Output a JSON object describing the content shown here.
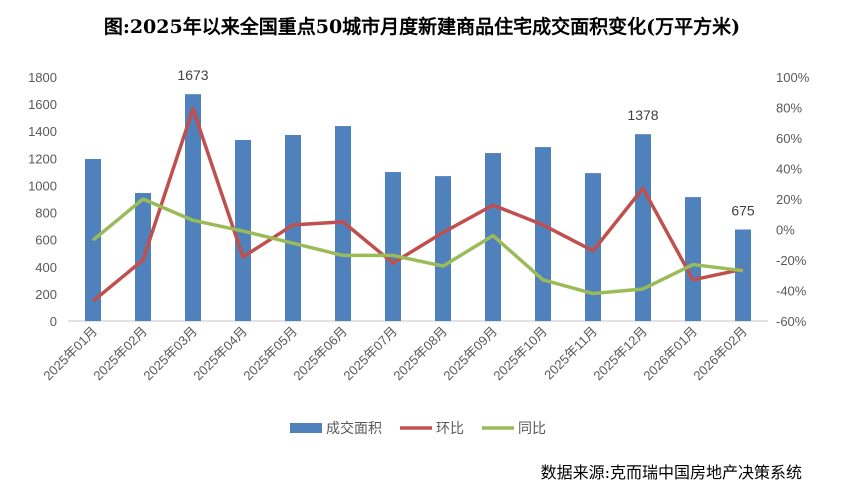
{
  "chart_data": {
    "type": "bar",
    "title": "图:2025年以来全国重点50城市月度新建商品住宅成交面积变化(万平方米)",
    "source": "数据来源:克而瑞中国房地产决策系统",
    "categories": [
      "2025年01月",
      "2025年02月",
      "2025年03月",
      "2025年04月",
      "2025年05月",
      "2025年06月",
      "2025年07月",
      "2025年08月",
      "2025年09月",
      "2025年10月",
      "2025年11月",
      "2025年12月",
      "2026年01月",
      "2026年02月"
    ],
    "y_left": {
      "range": [
        0,
        1800
      ],
      "ticks": [
        "0",
        "200",
        "400",
        "600",
        "800",
        "1000",
        "1200",
        "1400",
        "1600",
        "1800"
      ]
    },
    "y_right": {
      "range": [
        -60,
        100
      ],
      "ticks": [
        "-60%",
        "-40%",
        "-20%",
        "0%",
        "20%",
        "40%",
        "60%",
        "80%",
        "100%"
      ]
    },
    "grid": false,
    "legend_position": "bottom",
    "series": [
      {
        "name": "成交面积",
        "type": "bar",
        "axis": "left",
        "color": "#4f81bd",
        "values": [
          1195,
          944,
          1673,
          1335,
          1372,
          1438,
          1099,
          1069,
          1239,
          1283,
          1091,
          1378,
          914,
          675
        ],
        "data_labels": {
          "2": "1673",
          "11": "1378",
          "13": "675"
        }
      },
      {
        "name": "环比",
        "type": "line",
        "axis": "right",
        "unit": "%",
        "color": "#c0504d",
        "values": [
          -47,
          -20,
          79,
          -18,
          3,
          5,
          -22,
          -2,
          16,
          3,
          -14,
          27,
          -33,
          -26
        ]
      },
      {
        "name": "同比",
        "type": "line",
        "axis": "right",
        "unit": "%",
        "color": "#9bbb59",
        "values": [
          -7,
          20,
          6,
          -1,
          -9,
          -17,
          -17,
          -24,
          -4,
          -33,
          -42,
          -39,
          -23,
          -27
        ]
      }
    ]
  }
}
